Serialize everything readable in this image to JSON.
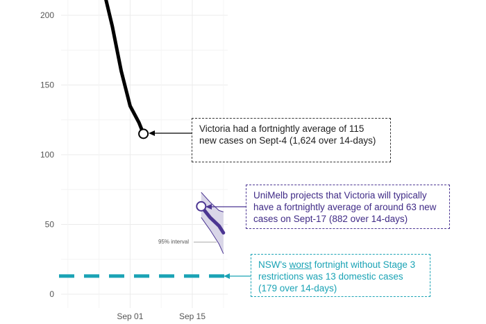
{
  "chart_data": {
    "type": "line",
    "yaxis": {
      "ticks": [
        0,
        50,
        100,
        150,
        200
      ],
      "range": [
        -8,
        212
      ]
    },
    "xaxis": {
      "ticks": [
        "Sep 01",
        "Sep 15"
      ],
      "day_of_sep_range": [
        -13,
        23
      ]
    },
    "series": [
      {
        "values": [
          {
            "day": -4.5,
            "y": 212
          },
          {
            "day": -3,
            "y": 192
          },
          {
            "day": -1,
            "y": 160
          },
          {
            "day": 1,
            "y": 135
          },
          {
            "day": 3,
            "y": 123
          },
          {
            "day": 4,
            "y": 115
          }
        ],
        "end_point": {
          "day": 4,
          "y": 115
        }
      },
      {
        "values": [
          {
            "day": 17,
            "y": 63
          },
          {
            "day": 19,
            "y": 55
          },
          {
            "day": 21,
            "y": 49
          },
          {
            "day": 22,
            "y": 44
          }
        ],
        "end_point": {
          "day": 17,
          "y": 63
        }
      }
    ],
    "interval": {
      "label": "95% interval",
      "upper": [
        {
          "day": 17,
          "y": 73
        },
        {
          "day": 19,
          "y": 66
        },
        {
          "day": 21,
          "y": 60
        },
        {
          "day": 22,
          "y": 59
        }
      ],
      "lower": [
        {
          "day": 17,
          "y": 55
        },
        {
          "day": 19,
          "y": 46
        },
        {
          "day": 21,
          "y": 36
        },
        {
          "day": 22,
          "y": 29
        }
      ]
    },
    "reference_line": {
      "y": 13,
      "style": "dashed"
    }
  },
  "annotations": {
    "victoria": {
      "line1": "Victoria had a fortnightly average of 115",
      "line2": "new cases on Sept-4 (1,624 over 14-days)"
    },
    "unimelb": {
      "line1": "UniMelb projects that Victoria will typically",
      "line2": "have a fortnightly average of around 63 new",
      "line3": "cases on Sept-17 (882 over 14-days)"
    },
    "nsw": {
      "line1_pre": "NSW's ",
      "line1_u": "worst",
      "line1_post": " fortnight without Stage 3",
      "line2": "restrictions was 13 domestic cases",
      "line3": "(179 over 14-days)"
    }
  },
  "colors": {
    "victoria_line": "#000000",
    "projection": "#4b3592",
    "interval_fill": "#d9d6e8",
    "nsw_line": "#1aa3b5",
    "grid": "#ebebeb"
  }
}
